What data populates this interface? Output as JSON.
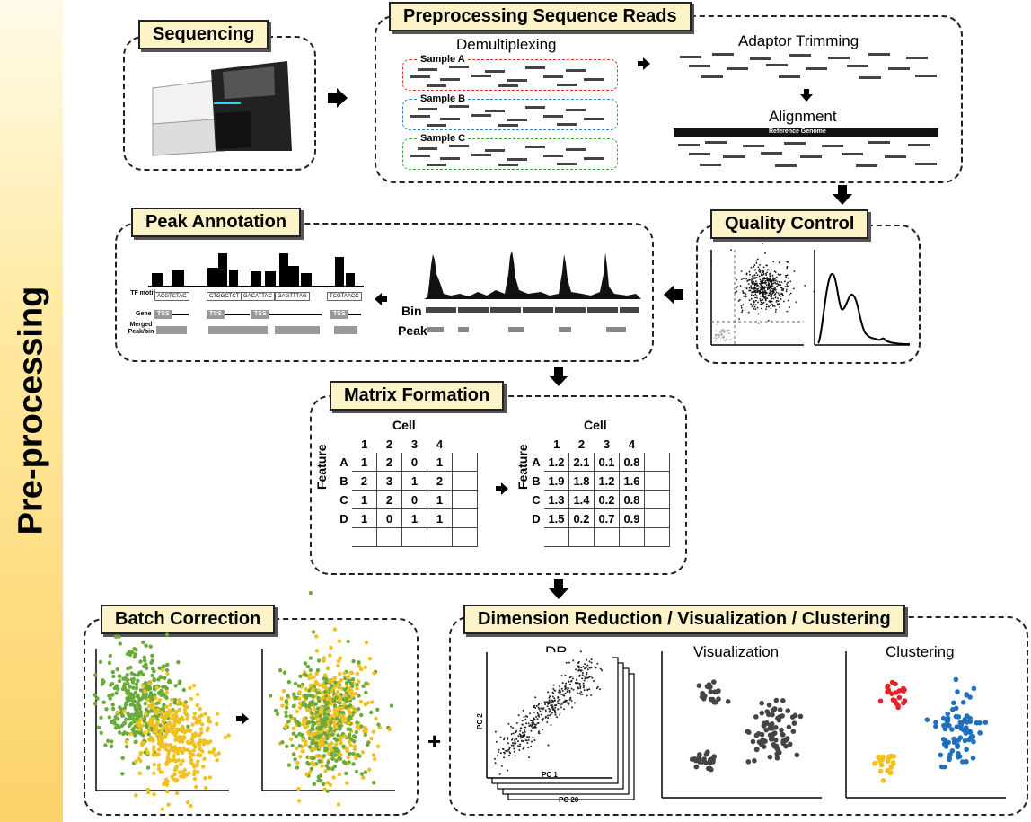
{
  "sidebar": {
    "label": "Pre-processing"
  },
  "sequencing": {
    "title": "Sequencing"
  },
  "preprocessing": {
    "title": "Preprocessing Sequence Reads",
    "demultiplexing": "Demultiplexing",
    "samples": [
      "Sample A",
      "Sample B",
      "Sample C"
    ],
    "adaptor_trimming": "Adaptor Trimming",
    "alignment": "Alignment",
    "reference_genome": "Reference Genome"
  },
  "quality_control": {
    "title": "Quality Control"
  },
  "peak_annotation": {
    "title": "Peak Annotation",
    "tf_motif_label": "TF motif",
    "gene_label": "Gene",
    "merged_label": "Merged Peak/bin",
    "motifs": [
      "ACGTCTAC",
      "CTGGCTCT",
      "GACATTAC",
      "GAGTTTAG",
      "TCGTAACC"
    ],
    "tss": "TSS",
    "bin_label": "Bin",
    "peak_label": "Peak"
  },
  "matrix_formation": {
    "title": "Matrix Formation",
    "cell_label": "Cell",
    "feature_label": "Feature",
    "col_headers": [
      "1",
      "2",
      "3",
      "4"
    ],
    "row_headers": [
      "A",
      "B",
      "C",
      "D"
    ],
    "raw_matrix": [
      [
        "1",
        "2",
        "0",
        "1"
      ],
      [
        "2",
        "3",
        "1",
        "2"
      ],
      [
        "1",
        "2",
        "0",
        "1"
      ],
      [
        "1",
        "0",
        "1",
        "1"
      ]
    ],
    "norm_matrix": [
      [
        "1.2",
        "2.1",
        "0.1",
        "0.8"
      ],
      [
        "1.9",
        "1.8",
        "1.2",
        "1.6"
      ],
      [
        "1.3",
        "1.4",
        "0.2",
        "0.8"
      ],
      [
        "1.5",
        "0.2",
        "0.7",
        "0.9"
      ]
    ]
  },
  "batch_correction": {
    "title": "Batch Correction"
  },
  "dim_reduction": {
    "title": "Dimension Reduction / Visualization / Clustering",
    "dr_label": "DR",
    "pc2": "PC 2",
    "pc1": "PC 1",
    "pc20": "PC 20",
    "visualization_label": "Visualization",
    "clustering_label": "Clustering"
  },
  "plus_sign": "+",
  "colors": {
    "green": "#6aaa3a",
    "yellow": "#f0c020",
    "red": "#e8202a",
    "blue": "#2070c0",
    "dark": "#444444",
    "title_bg": "#fdf3c9"
  }
}
